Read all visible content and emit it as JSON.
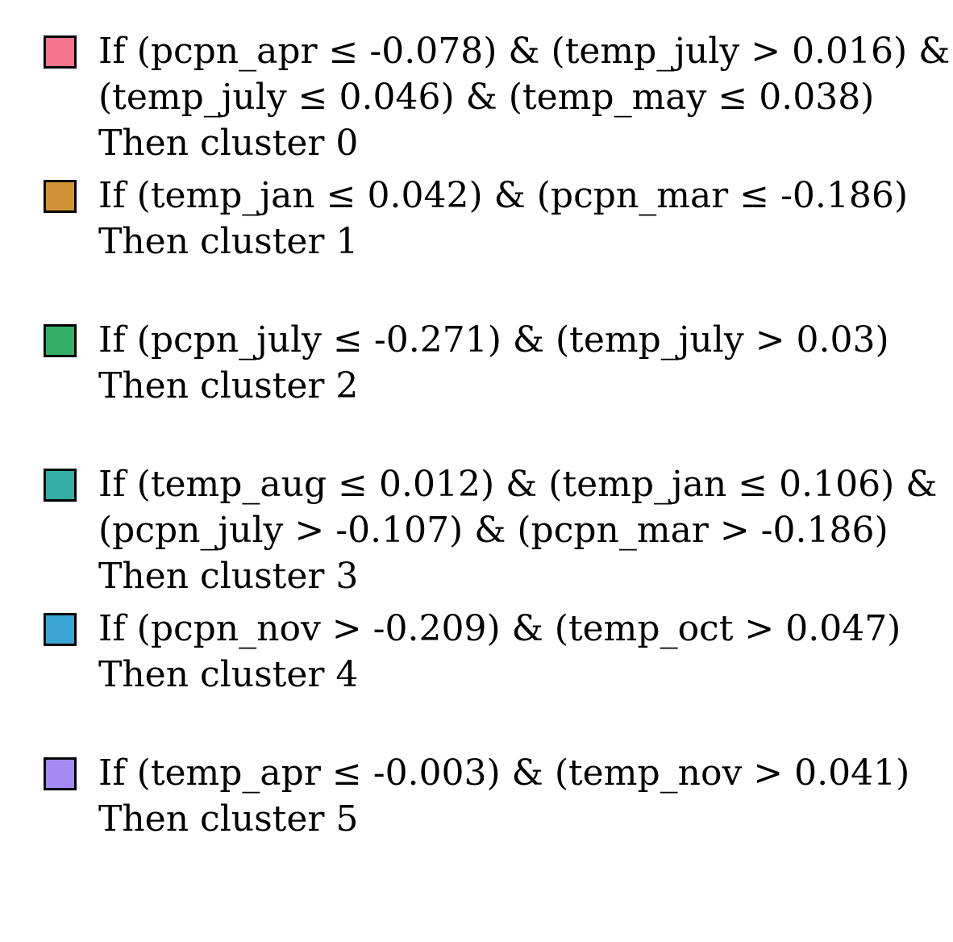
{
  "rules": [
    {
      "color": "#f7758c",
      "lines": [
        "If (pcpn_apr ≤ -0.078) & (temp_july > 0.016) &",
        "(temp_july ≤ 0.046) & (temp_may ≤ 0.038)"
      ],
      "then": "Then cluster 0"
    },
    {
      "color": "#d29234",
      "lines": [
        "If (temp_jan ≤ 0.042) & (pcpn_mar ≤ -0.186)"
      ],
      "then": "Then cluster 1"
    },
    {
      "color": "#32b166",
      "lines": [
        "If (pcpn_july ≤ -0.271) & (temp_july > 0.03)"
      ],
      "then": "Then cluster 2"
    },
    {
      "color": "#35ada4",
      "lines": [
        "If (temp_aug ≤ 0.012) & (temp_jan ≤ 0.106) &",
        "(pcpn_july > -0.107) & (pcpn_mar > -0.186)"
      ],
      "then": "Then cluster 3"
    },
    {
      "color": "#39a6d3",
      "lines": [
        "If (pcpn_nov > -0.209) & (temp_oct > 0.047)"
      ],
      "then": "Then cluster 4"
    },
    {
      "color": "#a58af3",
      "lines": [
        "If (temp_apr ≤ -0.003) & (temp_nov > 0.041)"
      ],
      "then": "Then cluster 5"
    }
  ]
}
